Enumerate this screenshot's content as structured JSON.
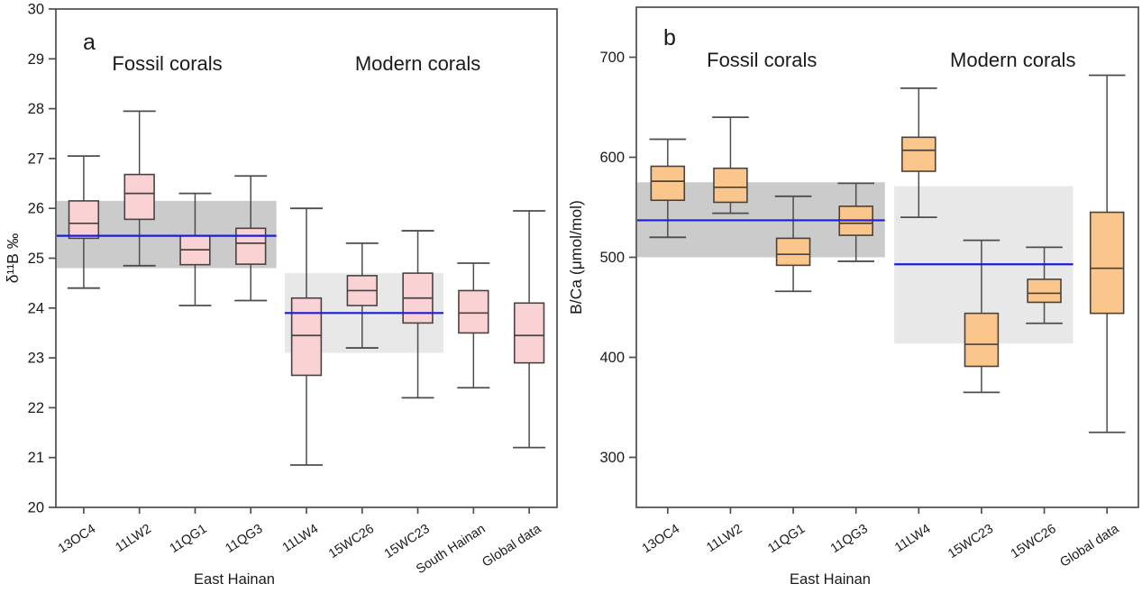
{
  "figure": {
    "background": "#ffffff",
    "frame_color": "#4d4d4d",
    "text_color": "#1a1a1a"
  },
  "chart_data": [
    {
      "type": "box",
      "panel_letter": "a",
      "ylabel": "δ¹¹B ‰",
      "xlabel": "East Hainan",
      "ylim": [
        20,
        30
      ],
      "yticks": [
        20,
        21,
        22,
        23,
        24,
        25,
        26,
        27,
        28,
        29,
        30
      ],
      "categories": [
        "13OC4",
        "11LW2",
        "11QG1",
        "11QG3",
        "11LW4",
        "15WC26",
        "15WC23",
        "South Hainan",
        "Global data"
      ],
      "groups": [
        {
          "label": "Fossil corals",
          "cats": [
            0,
            3
          ]
        },
        {
          "label": "Modern corals",
          "cats": [
            4,
            8
          ]
        }
      ],
      "box_fill": "#fad2d4",
      "box_stroke": "#4a4242",
      "whisker_color": "#4d4d4d",
      "boxes": [
        {
          "category": "13OC4",
          "low": 24.4,
          "q1": 25.4,
          "median": 25.7,
          "q3": 26.15,
          "high": 27.05
        },
        {
          "category": "11LW2",
          "low": 24.85,
          "q1": 25.78,
          "median": 26.3,
          "q3": 26.68,
          "high": 27.95
        },
        {
          "category": "11QG1",
          "low": 24.05,
          "q1": 24.87,
          "median": 25.17,
          "q3": 25.45,
          "high": 26.3
        },
        {
          "category": "11QG3",
          "low": 24.15,
          "q1": 24.88,
          "median": 25.3,
          "q3": 25.6,
          "high": 26.65
        },
        {
          "category": "11LW4",
          "low": 20.85,
          "q1": 22.65,
          "median": 23.45,
          "q3": 24.2,
          "high": 26.0
        },
        {
          "category": "15WC26",
          "low": 23.2,
          "q1": 24.05,
          "median": 24.35,
          "q3": 24.65,
          "high": 25.3
        },
        {
          "category": "15WC23",
          "low": 22.2,
          "q1": 23.7,
          "median": 24.2,
          "q3": 24.7,
          "high": 25.55
        },
        {
          "category": "South Hainan",
          "low": 22.4,
          "q1": 23.5,
          "median": 23.9,
          "q3": 24.35,
          "high": 24.9
        },
        {
          "category": "Global data",
          "low": 21.2,
          "q1": 22.9,
          "median": 23.45,
          "q3": 24.1,
          "high": 25.95
        }
      ],
      "bands": [
        {
          "label": "fossil-range-band",
          "value_range": [
            24.8,
            26.15
          ],
          "cat_span": [
            0,
            3
          ],
          "color": "#cbcbcb"
        },
        {
          "label": "modern-range-band",
          "value_range": [
            23.1,
            24.7
          ],
          "cat_span": [
            4,
            6
          ],
          "color": "#e8e8e8"
        }
      ],
      "mean_lines": [
        {
          "label": "fossil-mean-line",
          "value": 25.45,
          "cat_span": [
            0,
            3
          ],
          "color": "#1c1cd9"
        },
        {
          "label": "modern-mean-line",
          "value": 23.9,
          "cat_span": [
            4,
            6
          ],
          "color": "#1c1cd9"
        }
      ]
    },
    {
      "type": "box",
      "panel_letter": "b",
      "ylabel": "B/Ca (μmol/mol)",
      "xlabel": "East Hainan",
      "ylim": [
        250,
        750
      ],
      "yticks": [
        300,
        400,
        500,
        600,
        700
      ],
      "categories": [
        "13OC4",
        "11LW2",
        "11QG1",
        "11QG3",
        "11LW4",
        "15WC23",
        "15WC26",
        "Global data"
      ],
      "groups": [
        {
          "label": "Fossil corals",
          "cats": [
            0,
            3
          ]
        },
        {
          "label": "Modern corals",
          "cats": [
            4,
            7
          ]
        }
      ],
      "box_fill": "#fac68c",
      "box_stroke": "#4a4238",
      "whisker_color": "#4d4d4d",
      "boxes": [
        {
          "category": "13OC4",
          "low": 520,
          "q1": 557,
          "median": 576,
          "q3": 591,
          "high": 618
        },
        {
          "category": "11LW2",
          "low": 544,
          "q1": 555,
          "median": 570,
          "q3": 589,
          "high": 640
        },
        {
          "category": "11QG1",
          "low": 466,
          "q1": 492,
          "median": 503,
          "q3": 519,
          "high": 561
        },
        {
          "category": "11QG3",
          "low": 496,
          "q1": 522,
          "median": 534,
          "q3": 551,
          "high": 574
        },
        {
          "category": "11LW4",
          "low": 540,
          "q1": 586,
          "median": 607,
          "q3": 620,
          "high": 669
        },
        {
          "category": "15WC23",
          "low": 365,
          "q1": 391,
          "median": 413,
          "q3": 444,
          "high": 517
        },
        {
          "category": "15WC26",
          "low": 434,
          "q1": 455,
          "median": 464,
          "q3": 478,
          "high": 510
        },
        {
          "category": "Global data",
          "low": 325,
          "q1": 444,
          "median": 489,
          "q3": 545,
          "high": 682
        }
      ],
      "bands": [
        {
          "label": "fossil-range-band",
          "value_range": [
            500,
            575
          ],
          "cat_span": [
            0,
            3
          ],
          "color": "#cbcbcb"
        },
        {
          "label": "modern-range-band",
          "value_range": [
            414,
            571
          ],
          "cat_span": [
            4,
            6
          ],
          "color": "#e8e8e8"
        }
      ],
      "mean_lines": [
        {
          "label": "fossil-mean-line",
          "value": 537,
          "cat_span": [
            0,
            3
          ],
          "color": "#1c1cd9"
        },
        {
          "label": "modern-mean-line",
          "value": 493,
          "cat_span": [
            4,
            6
          ],
          "color": "#1c1cd9"
        }
      ]
    }
  ]
}
